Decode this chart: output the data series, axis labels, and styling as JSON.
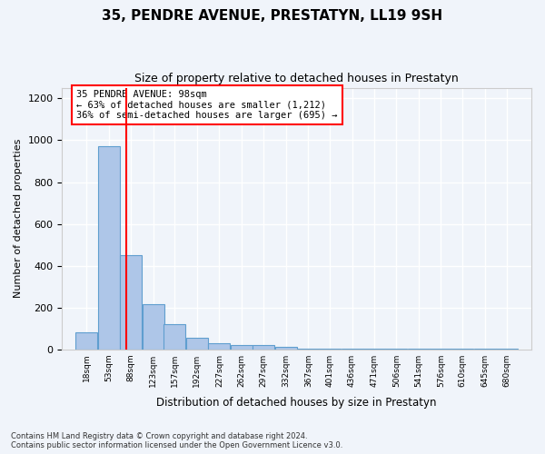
{
  "title": "35, PENDRE AVENUE, PRESTATYN, LL19 9SH",
  "subtitle": "Size of property relative to detached houses in Prestatyn",
  "xlabel": "Distribution of detached houses by size in Prestatyn",
  "ylabel": "Number of detached properties",
  "bar_edges": [
    18,
    53,
    88,
    123,
    157,
    192,
    227,
    262,
    297,
    332,
    367,
    401,
    436,
    471,
    506,
    541,
    576,
    610,
    645,
    680,
    715
  ],
  "bar_heights": [
    80,
    970,
    450,
    215,
    120,
    55,
    28,
    20,
    20,
    12,
    5,
    3,
    2,
    2,
    1,
    1,
    1,
    1,
    1,
    1
  ],
  "bar_color": "#aec6e8",
  "bar_edgecolor": "#5f9ecf",
  "property_line_x": 98,
  "property_line_color": "red",
  "annotation_text": "35 PENDRE AVENUE: 98sqm\n← 63% of detached houses are smaller (1,212)\n36% of semi-detached houses are larger (695) →",
  "annotation_box_color": "red",
  "annotation_box_facecolor": "white",
  "ylim": [
    0,
    1250
  ],
  "yticks": [
    0,
    200,
    400,
    600,
    800,
    1000,
    1200
  ],
  "tick_labels": [
    "18sqm",
    "53sqm",
    "88sqm",
    "123sqm",
    "157sqm",
    "192sqm",
    "227sqm",
    "262sqm",
    "297sqm",
    "332sqm",
    "367sqm",
    "401sqm",
    "436sqm",
    "471sqm",
    "506sqm",
    "541sqm",
    "576sqm",
    "610sqm",
    "645sqm",
    "680sqm"
  ],
  "footer_text": "Contains HM Land Registry data © Crown copyright and database right 2024.\nContains public sector information licensed under the Open Government Licence v3.0.",
  "background_color": "#f0f4fa",
  "grid_color": "white"
}
